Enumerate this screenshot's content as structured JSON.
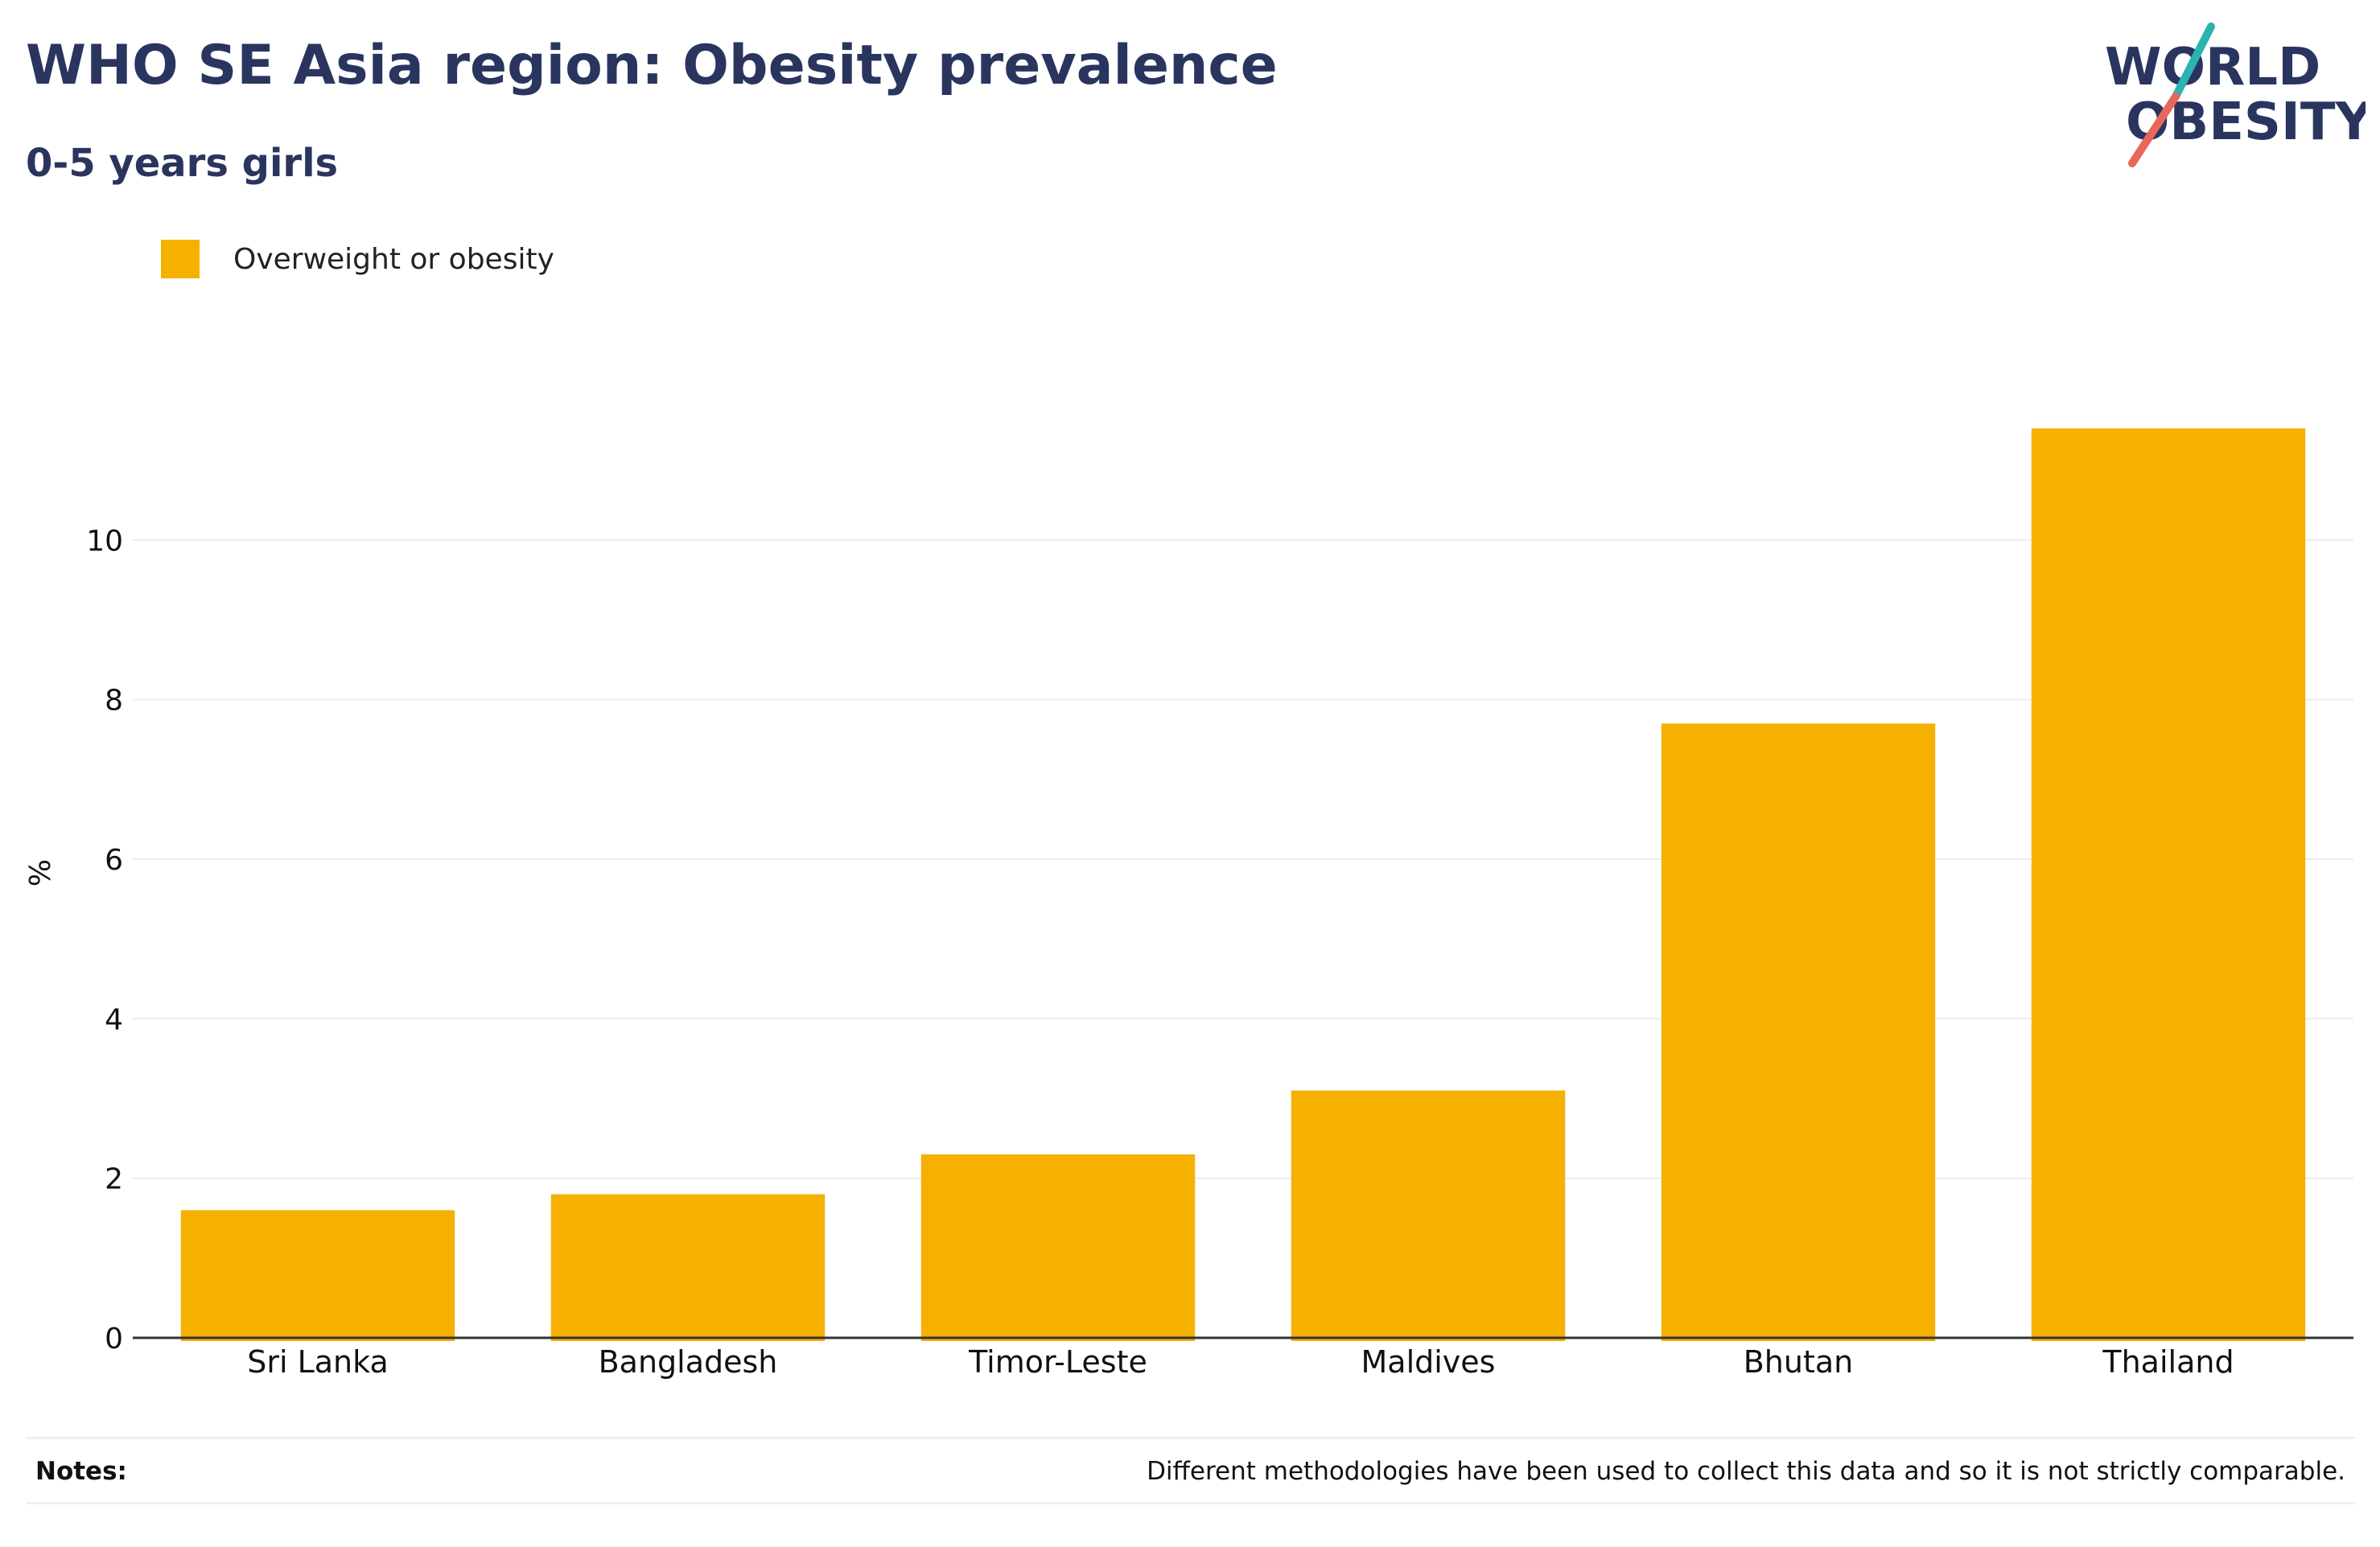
{
  "header": {
    "title": "WHO SE Asia region: Obesity prevalence",
    "subtitle": "0-5 years girls"
  },
  "logo": {
    "line1": "WORLD",
    "line2": "OBESITY",
    "text_color": "#2a355f",
    "slash_top_color": "#2ab3b1",
    "slash_bottom_color": "#e8665a"
  },
  "notes": {
    "label": "Notes:",
    "text": "Different methodologies have been used to collect this data and so it is not strictly comparable."
  },
  "chart_data": {
    "type": "bar",
    "title": "WHO SE Asia region: Obesity prevalence",
    "subtitle": "0-5 years girls",
    "categories": [
      "Sri Lanka",
      "Bangladesh",
      "Timor-Leste",
      "Maldives",
      "Bhutan",
      "Thailand"
    ],
    "series": [
      {
        "name": "Overweight or obesity",
        "color": "#f5b000",
        "values": [
          1.6,
          1.8,
          2.3,
          3.1,
          7.7,
          11.4
        ]
      }
    ],
    "xlabel": "",
    "ylabel": "%",
    "ylim": [
      0,
      12
    ],
    "yticks": [
      0,
      2,
      4,
      6,
      8,
      10
    ],
    "grid": true,
    "legend": "top-left"
  }
}
